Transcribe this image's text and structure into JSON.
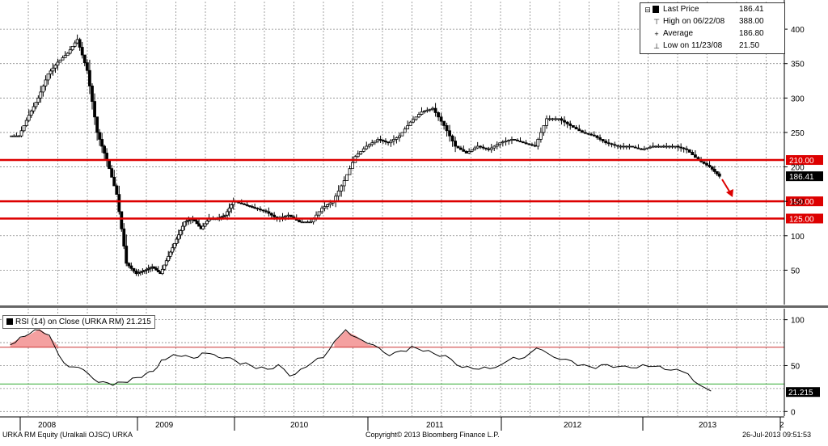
{
  "chart_data": [
    {
      "type": "line",
      "subtype": "candlestick",
      "x_type": "date",
      "x": [
        "2007-12-01",
        "2008-01-01",
        "2008-02-01",
        "2008-03-01",
        "2008-04-01",
        "2008-05-01",
        "2008-06-01",
        "2008-07-01",
        "2008-08-01",
        "2008-09-01",
        "2008-10-01",
        "2008-11-01",
        "2008-12-01",
        "2009-01-01",
        "2009-02-01",
        "2009-03-01",
        "2009-04-01",
        "2009-05-01",
        "2009-06-01",
        "2009-07-01",
        "2009-08-01",
        "2009-09-01",
        "2009-10-01",
        "2009-11-01",
        "2009-12-01",
        "2010-01-01",
        "2010-02-01",
        "2010-03-01",
        "2010-04-01",
        "2010-05-01",
        "2010-06-01",
        "2010-07-01",
        "2010-08-01",
        "2010-09-01",
        "2010-10-01",
        "2010-11-01",
        "2010-12-01",
        "2011-01-01",
        "2011-02-01",
        "2011-03-01",
        "2011-04-01",
        "2011-05-01",
        "2011-06-01",
        "2011-07-01",
        "2011-08-01",
        "2011-09-01",
        "2011-10-01",
        "2011-11-01",
        "2011-12-01",
        "2012-01-01",
        "2012-02-01",
        "2012-03-01",
        "2012-04-01",
        "2012-05-01",
        "2012-06-01",
        "2012-07-01",
        "2012-08-01",
        "2012-09-01",
        "2012-10-01",
        "2012-11-01",
        "2012-12-01",
        "2013-01-01",
        "2013-02-01",
        "2013-03-01",
        "2013-04-01",
        "2013-05-01",
        "2013-06-01",
        "2013-07-01"
      ],
      "series": [
        {
          "name": "Last Price",
          "values": [
            245,
            275,
            300,
            335,
            352,
            365,
            385,
            340,
            250,
            210,
            160,
            60,
            45,
            50,
            55,
            45,
            70,
            95,
            120,
            125,
            110,
            125,
            125,
            130,
            150,
            145,
            140,
            135,
            125,
            130,
            120,
            120,
            140,
            150,
            180,
            215,
            230,
            240,
            235,
            245,
            265,
            280,
            285,
            260,
            230,
            220,
            230,
            225,
            235,
            240,
            235,
            230,
            270,
            270,
            260,
            250,
            245,
            235,
            230,
            230,
            225,
            230,
            230,
            230,
            225,
            210,
            200,
            186.41
          ]
        }
      ],
      "reference_lines": [
        {
          "value": 210.0,
          "label": "210.00",
          "color": "#dd0000"
        },
        {
          "value": 150.0,
          "label": "150.00",
          "color": "#dd0000"
        },
        {
          "value": 125.0,
          "label": "125.00",
          "color": "#dd0000"
        }
      ],
      "last_value_label": "186.41",
      "legend": {
        "rows": [
          {
            "label": "Last Price",
            "value": "186.41"
          },
          {
            "label": "High on 06/22/08",
            "value": "388.00"
          },
          {
            "label": "Average",
            "value": "186.80"
          },
          {
            "label": "Low on 11/23/08",
            "value": "21.50"
          }
        ],
        "placement": "top-right"
      },
      "ylim": [
        0,
        440
      ],
      "yticks": [
        50,
        100,
        150,
        200,
        250,
        300,
        350,
        400
      ],
      "ytick_labels": [
        "50",
        "100",
        "150",
        "200",
        "250",
        "300",
        "350",
        "400"
      ],
      "xticks": [
        "2008",
        "2009",
        "2010",
        "2011",
        "2012",
        "2013",
        "2"
      ],
      "grid": true
    },
    {
      "type": "line",
      "x_type": "date",
      "x": [
        "2007-12-01",
        "2008-01-01",
        "2008-02-01",
        "2008-03-01",
        "2008-04-01",
        "2008-05-01",
        "2008-06-01",
        "2008-07-01",
        "2008-08-01",
        "2008-09-01",
        "2008-10-01",
        "2008-11-01",
        "2008-12-01",
        "2009-01-01",
        "2009-02-01",
        "2009-03-01",
        "2009-04-01",
        "2009-05-01",
        "2009-06-01",
        "2009-07-01",
        "2009-08-01",
        "2009-09-01",
        "2009-10-01",
        "2009-11-01",
        "2009-12-01",
        "2010-01-01",
        "2010-02-01",
        "2010-03-01",
        "2010-04-01",
        "2010-05-01",
        "2010-06-01",
        "2010-07-01",
        "2010-08-01",
        "2010-09-01",
        "2010-10-01",
        "2010-11-01",
        "2010-12-01",
        "2011-01-01",
        "2011-02-01",
        "2011-03-01",
        "2011-04-01",
        "2011-05-01",
        "2011-06-01",
        "2011-07-01",
        "2011-08-01",
        "2011-09-01",
        "2011-10-01",
        "2011-11-01",
        "2011-12-01",
        "2012-01-01",
        "2012-02-01",
        "2012-03-01",
        "2012-04-01",
        "2012-05-01",
        "2012-06-01",
        "2012-07-01",
        "2012-08-01",
        "2012-09-01",
        "2012-10-01",
        "2012-11-01",
        "2012-12-01",
        "2013-01-01",
        "2013-02-01",
        "2013-03-01",
        "2013-04-01",
        "2013-05-01",
        "2013-06-01",
        "2013-07-01"
      ],
      "series": [
        {
          "name": "RSI (14) on Close (URKA RM)",
          "values": [
            74,
            80,
            84,
            90,
            82,
            60,
            50,
            47,
            40,
            33,
            30,
            31,
            33,
            36,
            40,
            45,
            55,
            58,
            62,
            60,
            57,
            65,
            62,
            58,
            60,
            55,
            52,
            48,
            45,
            50,
            40,
            45,
            52,
            60,
            75,
            88,
            82,
            73,
            68,
            62,
            65,
            70,
            67,
            62,
            60,
            52,
            48,
            45,
            48,
            50,
            58,
            60,
            68,
            62,
            58,
            54,
            50,
            48,
            50,
            48,
            49,
            50,
            48,
            47,
            45,
            40,
            30,
            21.215
          ]
        }
      ],
      "last_value_label": "21.215",
      "legend_label": "RSI (14) on Close (URKA RM) 21.215",
      "ylim": [
        -5,
        112
      ],
      "yticks": [
        0,
        50,
        100
      ],
      "ytick_labels": [
        "0",
        "50",
        "100"
      ],
      "reference_lines": [
        {
          "value": 70,
          "color": "#cc3333"
        },
        {
          "value": 30,
          "color": "#33aa33"
        }
      ],
      "overbought_fill": "#f4a0a0",
      "grid": true
    }
  ],
  "footer": {
    "left": "URKA RM Equity (Uralkali OJSC) URKA",
    "center": "Copyright© 2013 Bloomberg Finance L.P.",
    "right": "26-Jul-2013 09:51:53"
  },
  "colors": {
    "reference": "#dd0000",
    "price": "#000000",
    "grid": "#999999"
  }
}
